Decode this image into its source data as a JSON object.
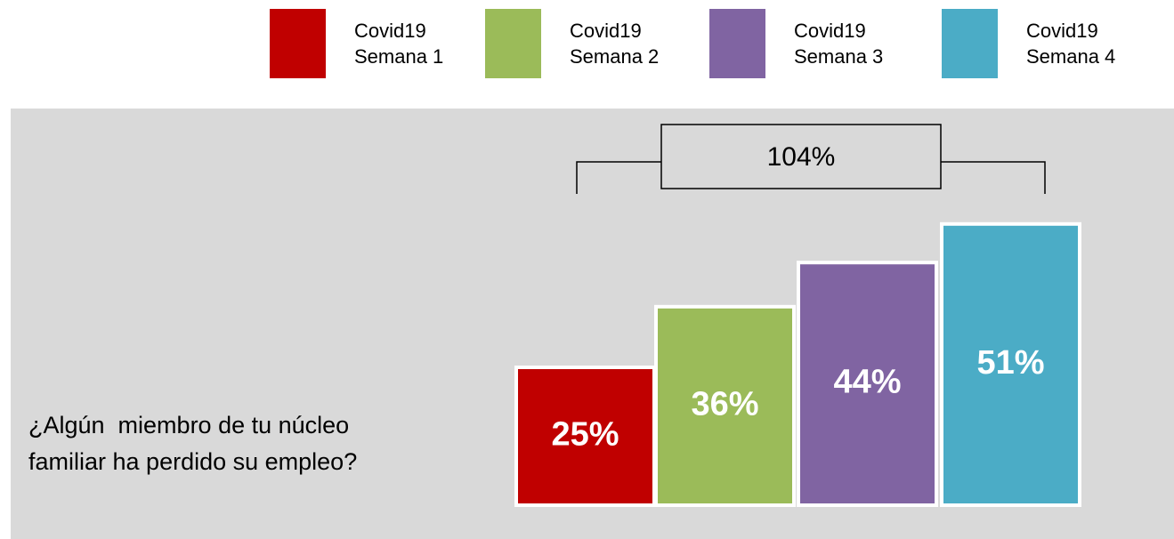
{
  "chart_data": {
    "type": "bar",
    "categories": [
      "Covid19 Semana 1",
      "Covid19 Semana 2",
      "Covid19 Semana 3",
      "Covid19 Semana 4"
    ],
    "series": [
      {
        "name": "Covid19 Semana 1",
        "color": "#c00000"
      },
      {
        "name": "Covid19 Semana 2",
        "color": "#9bbb59"
      },
      {
        "name": "Covid19 Semana 3",
        "color": "#8064a2"
      },
      {
        "name": "Covid19 Semana 4",
        "color": "#4bacc6"
      }
    ],
    "values": [
      25,
      36,
      44,
      51
    ],
    "value_labels": [
      "25%",
      "36%",
      "44%",
      "51%"
    ],
    "annotation": "104%",
    "question": [
      "¿Algún  miembro de tu núcleo",
      "familiar ha perdido su empleo?"
    ],
    "legend": "top"
  }
}
